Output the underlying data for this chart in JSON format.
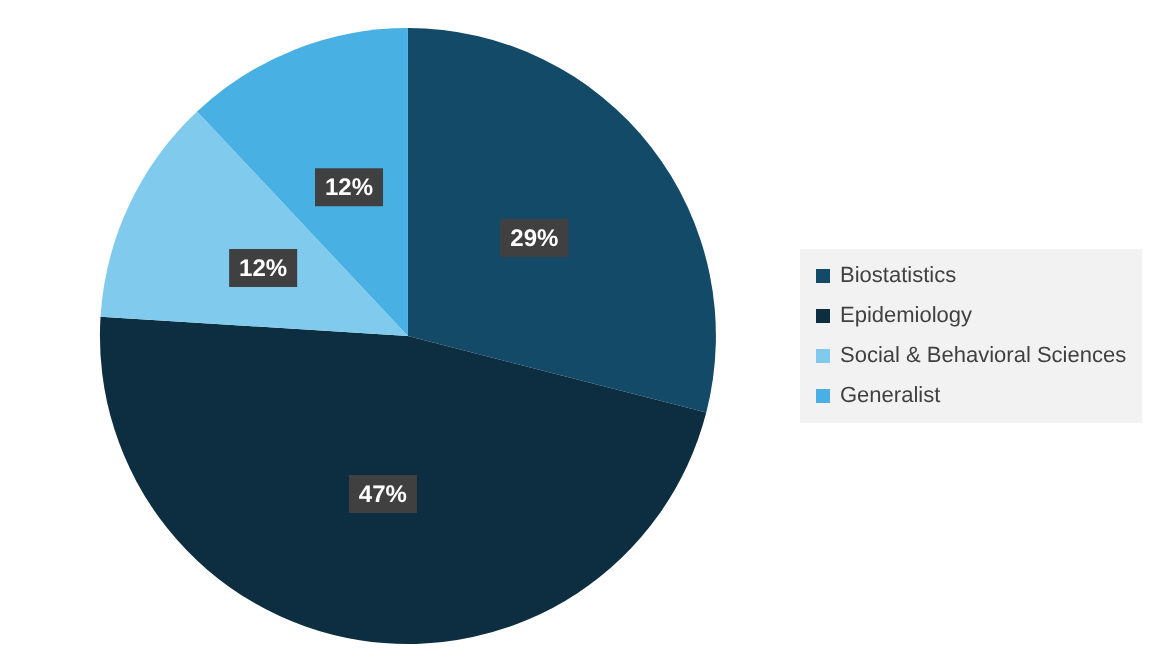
{
  "chart_data": {
    "type": "pie",
    "categories": [
      "Biostatistics",
      "Epidemiology",
      "Social & Behavioral Sciences",
      "Generalist"
    ],
    "values": [
      29,
      47,
      12,
      12
    ],
    "colors": [
      "#134a68",
      "#0d2d40",
      "#80cbed",
      "#48b0e3"
    ],
    "value_labels": [
      "29%",
      "47%",
      "12%",
      "12%"
    ],
    "legend": "right"
  }
}
